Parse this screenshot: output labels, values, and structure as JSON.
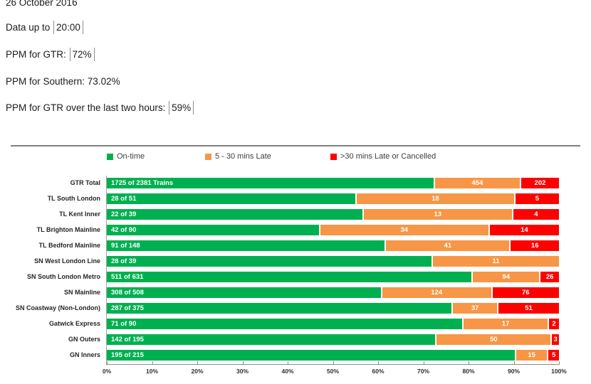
{
  "header": {
    "date_line": "26 October 2016",
    "data_up_to_prefix": "Data up to ",
    "data_up_to_value": "20:00",
    "ppm_gtr_prefix": "PPM for GTR: ",
    "ppm_gtr_value": "72%",
    "ppm_southern_line": "PPM for Southern: 73.02%",
    "ppm_gtr_2h_prefix": "PPM for GTR over the last two hours: ",
    "ppm_gtr_2h_value": "59%"
  },
  "chart_data": {
    "type": "bar",
    "orientation": "horizontal_stacked",
    "legend": [
      {
        "label": "On-time",
        "color": "#00B050"
      },
      {
        "label": "5 - 30 mins Late",
        "color": "#F79646"
      },
      {
        "label": ">30 mins Late or Cancelled",
        "color": "#FF0000"
      }
    ],
    "categories": [
      "GTR Total",
      "TL South London",
      "TL Kent Inner",
      "TL Brighton Mainline",
      "TL Bedford Mainline",
      "SN West London Line",
      "SN South London Metro",
      "SN Mainline",
      "SN Coastway (Non-London)",
      "Gatwick Express",
      "GN Outers",
      "GN Inners"
    ],
    "series": [
      {
        "name": "On-time",
        "values": [
          1725,
          28,
          22,
          42,
          91,
          28,
          511,
          308,
          287,
          71,
          142,
          195
        ]
      },
      {
        "name": "5 - 30 mins Late",
        "values": [
          454,
          18,
          13,
          34,
          41,
          11,
          94,
          124,
          37,
          17,
          50,
          15
        ]
      },
      {
        "name": ">30 mins Late or Cancelled",
        "values": [
          202,
          5,
          4,
          14,
          16,
          0,
          26,
          76,
          51,
          2,
          3,
          5
        ]
      }
    ],
    "totals": [
      2381,
      51,
      39,
      90,
      148,
      39,
      631,
      508,
      375,
      90,
      195,
      215
    ],
    "on_time_bar_labels": [
      "1725 of 2381 Trains",
      "28 of 51",
      "22 of 39",
      "42 of 90",
      "91 of 148",
      "28 of 39",
      "511 of 631",
      "308 of 508",
      "287 of 375",
      "71 of 90",
      "142 of 195",
      "195 of 215"
    ],
    "x_axis": {
      "ticks": [
        "0%",
        "10%",
        "20%",
        "30%",
        "40%",
        "50%",
        "60%",
        "70%",
        "80%",
        "90%",
        "100%"
      ],
      "min": 0,
      "max": 100,
      "grid": false
    },
    "legend_position": "top"
  }
}
